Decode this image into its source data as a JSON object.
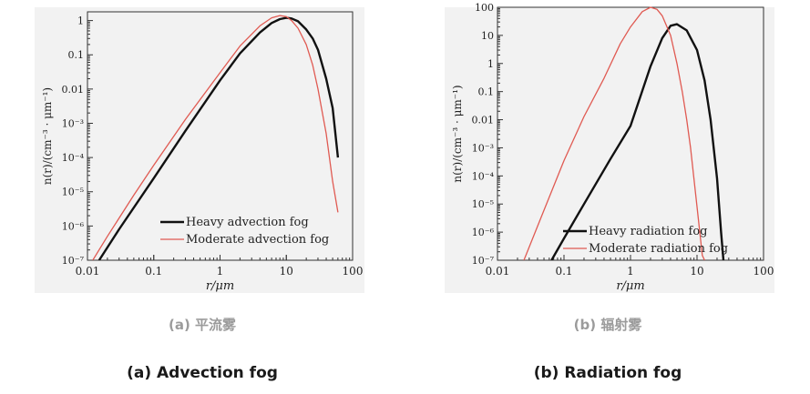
{
  "chart_data": [
    {
      "type": "line",
      "caption_zh": "(a) 平流雾",
      "caption_en": "(a) Advection fog",
      "xlabel": "r/μm",
      "ylabel": "n(r)/(cm⁻³ · μm⁻¹)",
      "x_scale": "log",
      "y_scale": "log",
      "xlim": [
        0.01,
        100
      ],
      "ylim": [
        1e-07,
        1.8
      ],
      "x_ticks": [
        "0.01",
        "0.1",
        "1",
        "10",
        "100"
      ],
      "y_ticks": [
        "10⁻⁷",
        "10⁻⁶",
        "10⁻⁵",
        "10⁻⁴",
        "10⁻³",
        "0.01",
        "0.1",
        "1"
      ],
      "legend_position": "bottom-right",
      "grid": false,
      "colors": {
        "heavy": "#111111",
        "moderate": "#e05a52"
      },
      "series": [
        {
          "name": "Heavy advection fog",
          "x": [
            0.015,
            0.03,
            0.1,
            0.3,
            1,
            2,
            4,
            6,
            8,
            10,
            12,
            15,
            20,
            25,
            30,
            40,
            50,
            60
          ],
          "y": [
            1e-07,
            8e-07,
            2.5e-05,
            0.0006,
            0.018,
            0.11,
            0.45,
            0.85,
            1.1,
            1.2,
            1.15,
            0.95,
            0.55,
            0.3,
            0.14,
            0.02,
            0.0028,
            0.0001
          ]
        },
        {
          "name": "Moderate advection fog",
          "x": [
            0.012,
            0.02,
            0.05,
            0.1,
            0.3,
            1,
            2,
            4,
            6,
            8,
            10,
            12,
            15,
            20,
            25,
            30,
            40,
            50,
            60
          ],
          "y": [
            1e-07,
            5e-07,
            8e-06,
            6e-05,
            0.0013,
            0.03,
            0.18,
            0.7,
            1.2,
            1.4,
            1.3,
            1.0,
            0.6,
            0.2,
            0.05,
            0.01,
            0.0005,
            2e-05,
            2.5e-06
          ]
        }
      ]
    },
    {
      "type": "line",
      "caption_zh": "(b) 辐射雾",
      "caption_en": "(b) Radiation fog",
      "xlabel": "r/μm",
      "ylabel": "n(r)/(cm⁻³ · μm⁻¹)",
      "x_scale": "log",
      "y_scale": "log",
      "xlim": [
        0.01,
        100
      ],
      "ylim": [
        1e-07,
        100
      ],
      "x_ticks": [
        "0.01",
        "0.1",
        "1",
        "10",
        "100"
      ],
      "y_ticks": [
        "10⁻⁷",
        "10⁻⁶",
        "10⁻⁵",
        "10⁻⁴",
        "10⁻³",
        "0.01",
        "0.1",
        "1",
        "10",
        "100"
      ],
      "legend_position": "bottom-left",
      "grid": false,
      "colors": {
        "heavy": "#111111",
        "moderate": "#e05a52"
      },
      "series": [
        {
          "name": "Heavy radiation fog",
          "x": [
            0.065,
            0.1,
            0.2,
            0.5,
            1,
            2,
            3,
            4,
            5,
            7,
            10,
            13,
            16,
            20,
            23,
            25
          ],
          "y": [
            1e-07,
            6e-07,
            1e-05,
            0.0004,
            0.006,
            0.8,
            8,
            22,
            25,
            15,
            3,
            0.25,
            0.01,
            8e-05,
            1e-06,
            1e-07
          ]
        },
        {
          "name": "Moderate radiation fog",
          "x": [
            0.025,
            0.05,
            0.1,
            0.2,
            0.4,
            0.7,
            1,
            1.5,
            2,
            2.5,
            3,
            4,
            5,
            6,
            7,
            8,
            10,
            12,
            13
          ],
          "y": [
            1e-07,
            6e-06,
            0.00035,
            0.013,
            0.3,
            5,
            20,
            70,
            100,
            85,
            50,
            10,
            1,
            0.1,
            0.01,
            0.001,
            8e-06,
            1.5e-07,
            1e-07
          ]
        }
      ]
    }
  ]
}
